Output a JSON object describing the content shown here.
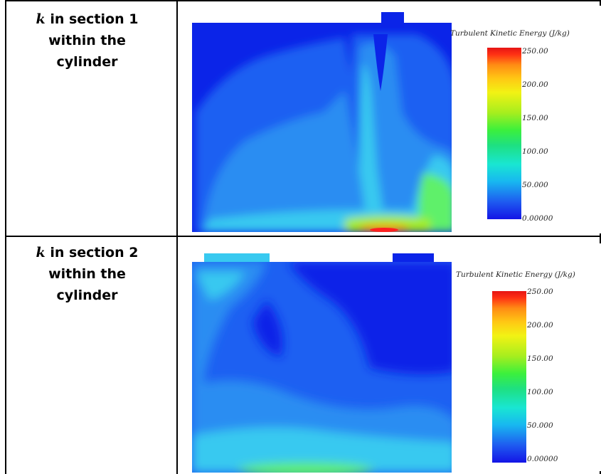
{
  "rows": [
    {
      "label_prefix": "k",
      "label_line1": " in section 1",
      "label_line2": "within the",
      "label_line3": "cylinder",
      "colorbar": {
        "title": "Turbulent Kinetic Energy (J/kg)",
        "ticks": [
          "250.00",
          "200.00",
          "150.00",
          "100.00",
          "50.000",
          "0.00000"
        ]
      }
    },
    {
      "label_prefix": "k",
      "label_line1": " in section 2",
      "label_line2": "within  the",
      "label_line3": "cylinder",
      "colorbar": {
        "title": "Turbulent Kinetic Energy (J/kg)",
        "ticks": [
          "250.00",
          "200.00",
          "150.00",
          "100.00",
          "50.000",
          "0.00000"
        ]
      }
    }
  ],
  "colors": {
    "deep_blue": "#0b24e8",
    "mid_blue": "#1d60f2",
    "light_blue": "#2c8df2",
    "cyan": "#38c9f0",
    "green": "#5ef06a",
    "hot": "#ff2020"
  }
}
